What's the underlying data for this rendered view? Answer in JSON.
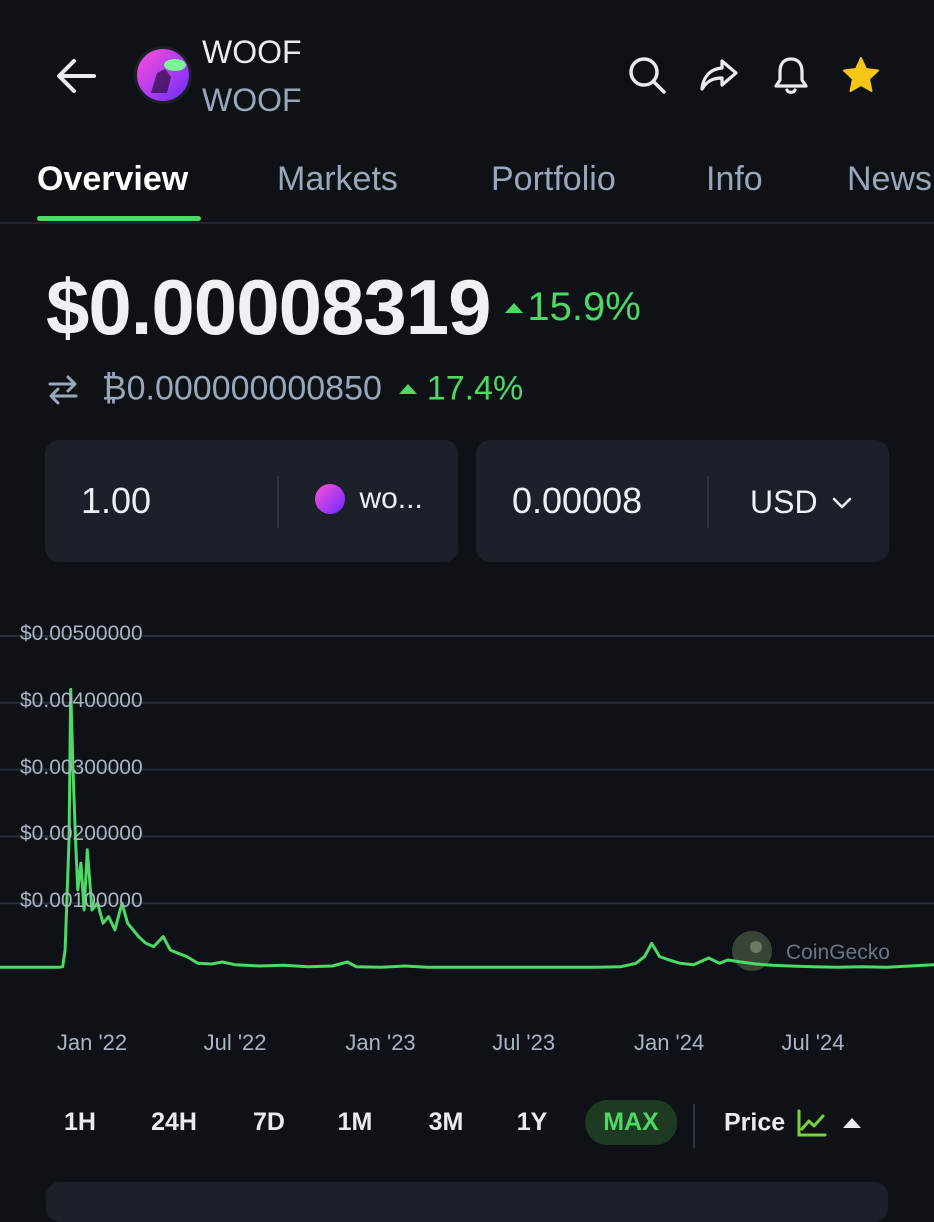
{
  "header": {
    "title": "WOOF",
    "subtitle": "WOOF",
    "icons": [
      "back-arrow-icon",
      "search-icon",
      "share-icon",
      "bell-icon",
      "star-icon"
    ]
  },
  "tabs": [
    {
      "label": "Overview",
      "active": true
    },
    {
      "label": "Markets",
      "active": false
    },
    {
      "label": "Portfolio",
      "active": false
    },
    {
      "label": "Info",
      "active": false
    },
    {
      "label": "News",
      "active": false
    }
  ],
  "price": {
    "usd": "$0.00008319",
    "usd_change": "15.9%",
    "btc": "₿0.000000000850",
    "btc_change": "17.4%"
  },
  "converter": {
    "amount": "1.00",
    "coin": "wo...",
    "converted": "0.00008",
    "currency": "USD"
  },
  "chart_data": {
    "type": "line",
    "y_tick_labels": [
      "$0.00500000",
      "$0.00400000",
      "$0.00300000",
      "$0.00200000",
      "$0.00100000"
    ],
    "x_tick_labels": [
      "Jan '22",
      "Jul '22",
      "Jan '23",
      "Jul '23",
      "Jan '24",
      "Jul '24"
    ],
    "ylim": [
      0,
      0.005
    ],
    "grid": true,
    "watermark": "CoinGecko",
    "series": [
      {
        "color": "#4cd964",
        "x": [
          "2021-11-15",
          "2021-11-20",
          "2021-11-25",
          "2021-11-28",
          "2021-12-01",
          "2021-12-03",
          "2021-12-05",
          "2021-12-08",
          "2021-12-11",
          "2021-12-14",
          "2021-12-18",
          "2021-12-22",
          "2021-12-26",
          "2022-01-01",
          "2022-01-08",
          "2022-01-15",
          "2022-01-22",
          "2022-01-30",
          "2022-02-08",
          "2022-02-15",
          "2022-02-22",
          "2022-03-01",
          "2022-03-10",
          "2022-03-20",
          "2022-04-01",
          "2022-04-10",
          "2022-04-20",
          "2022-05-01",
          "2022-05-15",
          "2022-06-01",
          "2022-06-15",
          "2022-07-01",
          "2022-08-01",
          "2022-09-01",
          "2022-10-01",
          "2022-11-01",
          "2022-11-20",
          "2022-12-01",
          "2023-01-01",
          "2023-02-01",
          "2023-03-01",
          "2023-04-01",
          "2023-05-01",
          "2023-06-01",
          "2023-07-01",
          "2023-08-01",
          "2023-09-01",
          "2023-10-01",
          "2023-11-01",
          "2023-11-20",
          "2023-12-01",
          "2023-12-10",
          "2023-12-20",
          "2024-01-01",
          "2024-01-15",
          "2024-02-01",
          "2024-02-20",
          "2024-03-05",
          "2024-03-15",
          "2024-04-01",
          "2024-04-20",
          "2024-05-10",
          "2024-06-01",
          "2024-07-01",
          "2024-08-01",
          "2024-09-01",
          "2024-10-01",
          "2024-11-01",
          "2024-12-01"
        ],
        "y": [
          4e-05,
          4e-05,
          5e-05,
          0.0003,
          0.0013,
          0.002,
          0.0042,
          0.003,
          0.002,
          0.0012,
          0.0016,
          0.0009,
          0.0018,
          0.0009,
          0.001,
          0.0007,
          0.0008,
          0.0006,
          0.001,
          0.0007,
          0.0006,
          0.0005,
          0.0004,
          0.00035,
          0.0005,
          0.0003,
          0.00025,
          0.0002,
          0.0001,
          9e-05,
          0.00012,
          8e-05,
          6e-05,
          7e-05,
          5e-05,
          6e-05,
          0.00012,
          5e-05,
          4e-05,
          6e-05,
          4e-05,
          4e-05,
          4e-05,
          4e-05,
          4e-05,
          4e-05,
          4e-05,
          4e-05,
          5e-05,
          0.0001,
          0.0002,
          0.0004,
          0.0002,
          0.00015,
          0.0001,
          8e-05,
          0.00018,
          0.0001,
          0.00015,
          0.00012,
          9e-05,
          7e-05,
          6e-05,
          5e-05,
          4e-05,
          5e-05,
          4e-05,
          6e-05,
          8e-05
        ]
      }
    ]
  },
  "ranges": {
    "items": [
      "1H",
      "24H",
      "7D",
      "1M",
      "3M",
      "1Y",
      "MAX"
    ],
    "active": "MAX",
    "mode_label": "Price"
  },
  "colors": {
    "background": "#0e1217",
    "accent": "#4cd964",
    "card": "#1b2029"
  }
}
